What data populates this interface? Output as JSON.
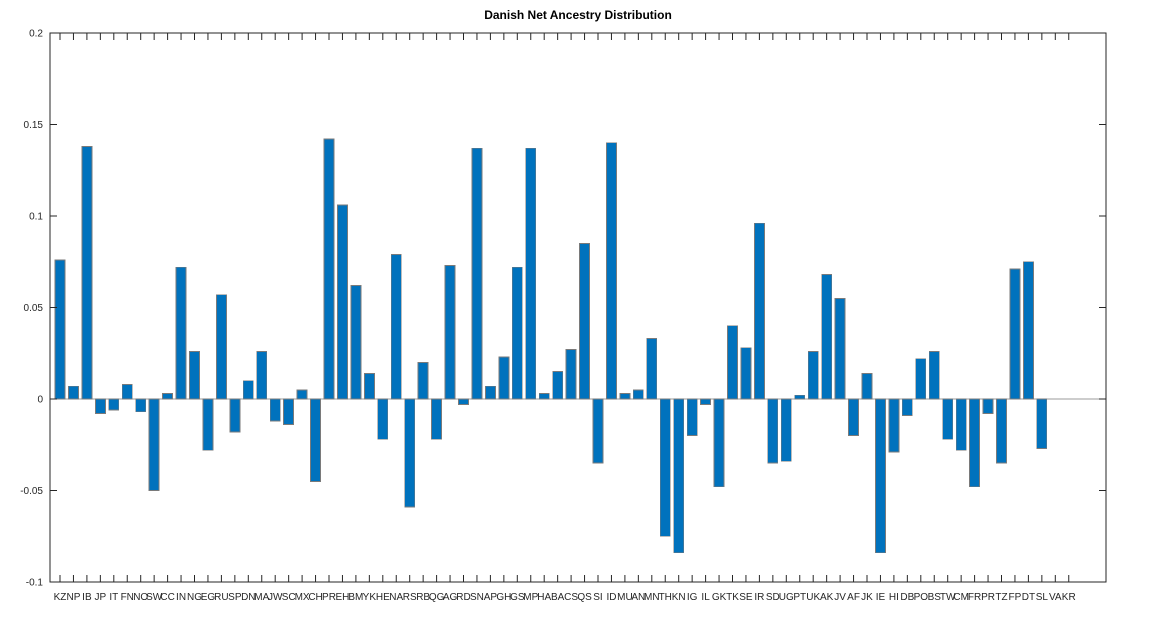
{
  "figure": {
    "background": "#ffffff"
  },
  "chart_data": {
    "type": "bar",
    "title": "Danish Net Ancestry Distribution",
    "categories": [
      "KZ",
      "NP",
      "IB",
      "JP",
      "IT",
      "FN",
      "NO",
      "SW",
      "CC",
      "IN",
      "NG",
      "EG",
      "RU",
      "SP",
      "DN",
      "MA",
      "JW",
      "SC",
      "MX",
      "CH",
      "PR",
      "EH",
      "BM",
      "YK",
      "HE",
      "NA",
      "RS",
      "RB",
      "QG",
      "AG",
      "RD",
      "SN",
      "AP",
      "GH",
      "GS",
      "MP",
      "HA",
      "BA",
      "CS",
      "QS",
      "SI",
      "ID",
      "MU",
      "AN",
      "MN",
      "TH",
      "KN",
      "IG",
      "IL",
      "GK",
      "TK",
      "SE",
      "IR",
      "SD",
      "UG",
      "PT",
      "UK",
      "AK",
      "JV",
      "AF",
      "JK",
      "IE",
      "HI",
      "DB",
      "PO",
      "BS",
      "TW",
      "CM",
      "FR",
      "PR",
      "TZ",
      "FP",
      "DT",
      "SL",
      "VA",
      "KR"
    ],
    "values": [
      0.076,
      0.007,
      0.138,
      -0.008,
      -0.006,
      0.008,
      -0.007,
      -0.05,
      0.003,
      0.072,
      0.026,
      -0.028,
      0.057,
      -0.018,
      0.01,
      0.026,
      -0.012,
      -0.014,
      0.005,
      -0.045,
      0.142,
      0.106,
      0.062,
      0.014,
      -0.022,
      0.079,
      -0.059,
      0.02,
      -0.022,
      0.073,
      -0.003,
      0.137,
      0.007,
      0.023,
      0.072,
      0.137,
      0.003,
      0.015,
      0.027,
      0.085,
      -0.035,
      0.14,
      0.003,
      0.005,
      0.033,
      -0.075,
      -0.084,
      -0.02,
      -0.003,
      -0.048,
      0.04,
      0.028,
      0.096,
      -0.035,
      -0.034,
      0.002,
      0.026,
      0.068,
      0.055,
      -0.02,
      0.014,
      -0.084,
      -0.029,
      -0.009,
      0.022,
      0.026,
      -0.022,
      -0.028,
      -0.048,
      -0.008,
      -0.035,
      0.071,
      0.075,
      -0.027,
      0.0,
      0.0
    ],
    "xlabel": "",
    "ylabel": "",
    "ylim": [
      -0.1,
      0.2
    ],
    "yticks": [
      0.2,
      0.15,
      0.1,
      0.05,
      0,
      -0.05,
      -0.1
    ],
    "ytick_labels": [
      "0.2",
      "0.15",
      "0.1",
      "0.05",
      "0",
      "-0.05",
      "-0.1"
    ],
    "grid": false,
    "legend": null,
    "bar_color": "#0072BD",
    "bar_edge_color": "#7a7a7a",
    "axis_color": "#262626",
    "zero_line_color": "#9b9b9b",
    "tick_label_color": "#262626",
    "background": "#ffffff"
  }
}
